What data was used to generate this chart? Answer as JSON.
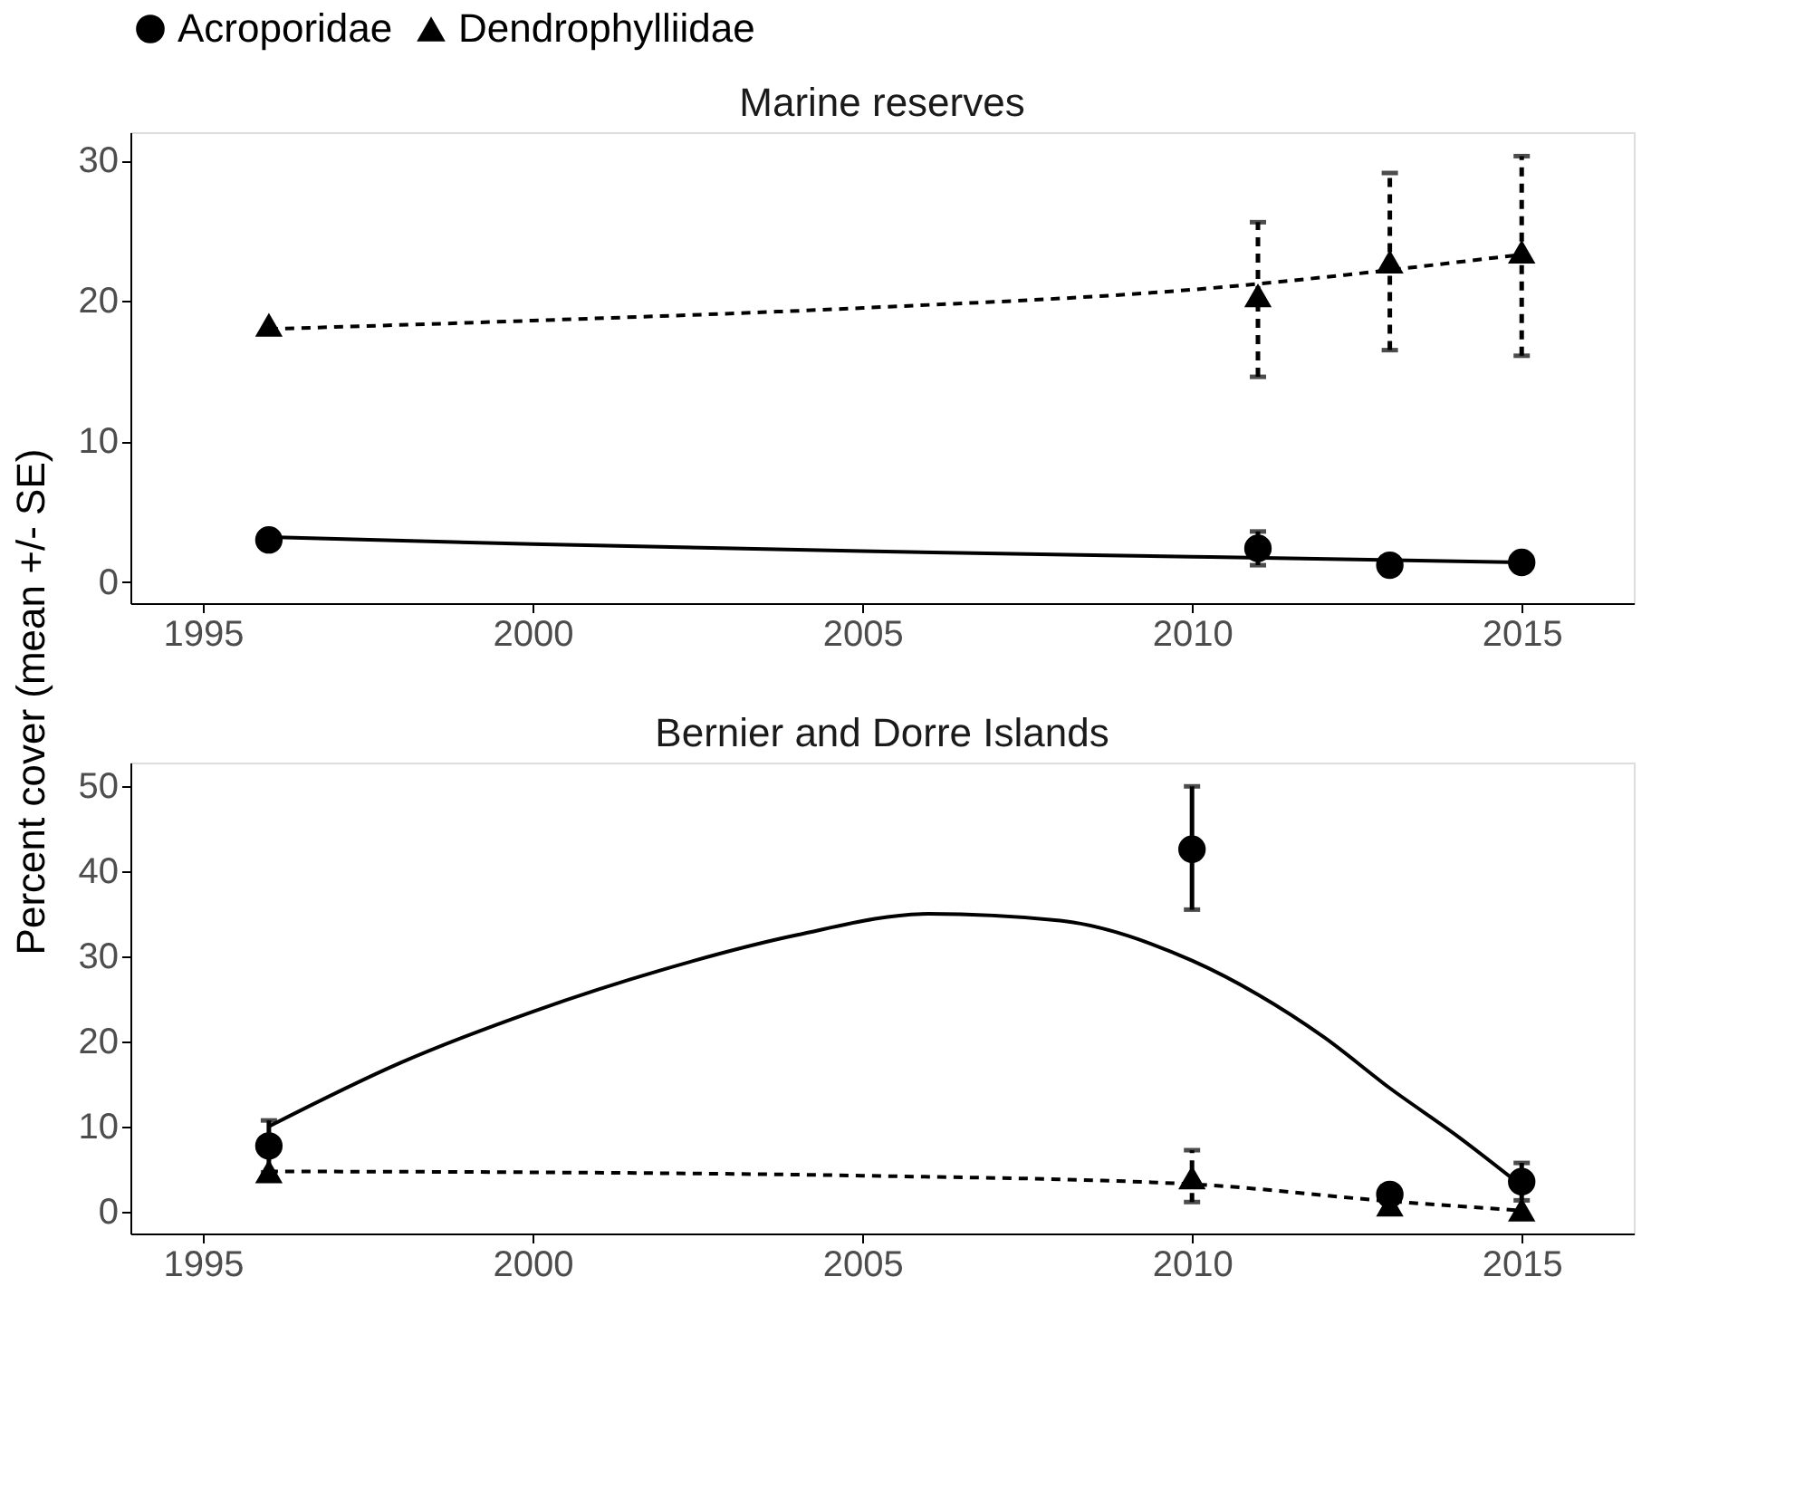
{
  "chart_data": [
    {
      "type": "scatter",
      "title": "Marine reserves",
      "ylabel": "Percent cover  (mean +/- SE)",
      "legend": "top",
      "grid": false,
      "xlim": [
        1993.9,
        2016.7
      ],
      "xticks": [
        1995,
        2000,
        2005,
        2010,
        2015
      ],
      "ylim": [
        -1.5,
        32
      ],
      "yticks": [
        0,
        10,
        20,
        30
      ],
      "series": [
        {
          "name": "Acroporidae",
          "marker": "circle",
          "line_style": "solid",
          "color": "#000000",
          "x": [
            1996,
            2011,
            2013,
            2015
          ],
          "values": [
            3.0,
            2.4,
            1.2,
            1.4
          ],
          "errors": [
            null,
            [
              1.2,
              3.6
            ],
            null,
            null
          ]
        },
        {
          "name": "Dendrophylliidae",
          "marker": "triangle",
          "line_style": "dashed",
          "color": "#000000",
          "x": [
            1996,
            2011,
            2013,
            2015
          ],
          "values": [
            18.3,
            20.4,
            22.8,
            23.5
          ],
          "errors": [
            null,
            [
              14.6,
              25.6
            ],
            [
              16.5,
              29.1
            ],
            [
              16.1,
              30.3
            ]
          ]
        },
        {
          "type": "line",
          "line_style": "solid",
          "color": "#000000",
          "x": [
            1996,
            2000,
            2005,
            2010,
            2015
          ],
          "values": [
            3.2,
            2.7,
            2.2,
            1.8,
            1.4
          ]
        },
        {
          "type": "line",
          "line_style": "dashed",
          "color": "#000000",
          "x": [
            1996,
            2000,
            2005,
            2010,
            2015
          ],
          "values": [
            18.0,
            18.6,
            19.5,
            20.8,
            23.3
          ]
        }
      ]
    },
    {
      "type": "scatter",
      "title": "Bernier and Dorre Islands",
      "grid": false,
      "xlim": [
        1993.9,
        2016.7
      ],
      "xticks": [
        1995,
        2000,
        2005,
        2010,
        2015
      ],
      "ylim": [
        -2.6,
        52.8
      ],
      "yticks": [
        0,
        10,
        20,
        30,
        40,
        50
      ],
      "series": [
        {
          "name": "Acroporidae",
          "marker": "circle",
          "line_style": "solid",
          "color": "#000000",
          "x": [
            1996,
            2010,
            2013,
            2015
          ],
          "values": [
            7.7,
            42.6,
            2.0,
            3.5
          ],
          "errors": [
            [
              4.6,
              10.7
            ],
            [
              35.5,
              50.0
            ],
            null,
            [
              1.3,
              5.7
            ]
          ]
        },
        {
          "name": "Dendrophylliidae",
          "marker": "triangle",
          "line_style": "dashed",
          "color": "#000000",
          "x": [
            1996,
            2010,
            2013,
            2015
          ],
          "values": [
            4.7,
            4.0,
            0.8,
            0.2
          ],
          "errors": [
            null,
            [
              1.1,
              7.2
            ],
            null,
            null
          ]
        },
        {
          "type": "line",
          "line_style": "solid",
          "color": "#000000",
          "x": [
            1996,
            1998,
            2000,
            2002,
            2004,
            2006,
            2008,
            2010,
            2011,
            2012,
            2013,
            2014,
            2015
          ],
          "values": [
            10.0,
            17.5,
            23.5,
            28.5,
            32.5,
            35.0,
            34.2,
            29.5,
            25.5,
            20.5,
            14.5,
            9.0,
            3.0
          ]
        },
        {
          "type": "line",
          "line_style": "dashed",
          "color": "#000000",
          "x": [
            1996,
            2000,
            2005,
            2010,
            2013,
            2015
          ],
          "values": [
            4.7,
            4.6,
            4.2,
            3.2,
            1.2,
            0.1
          ]
        }
      ]
    }
  ]
}
